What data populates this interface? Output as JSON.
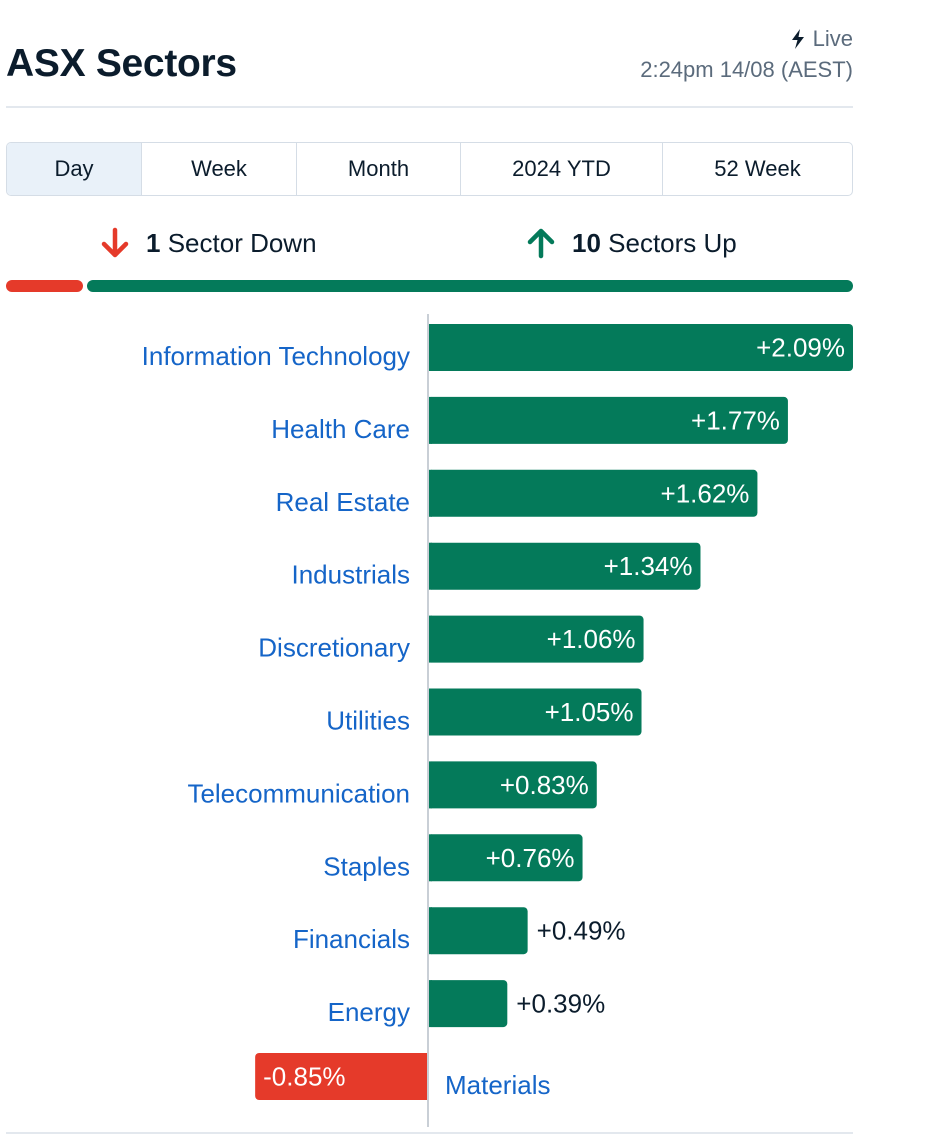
{
  "header": {
    "title": "ASX Sectors",
    "live_label": "Live",
    "timestamp": "2:24pm 14/08 (AEST)",
    "live_icon": "lightning-bolt-icon"
  },
  "tabs": [
    {
      "label": "Day",
      "active": true
    },
    {
      "label": "Week",
      "active": false
    },
    {
      "label": "Month",
      "active": false
    },
    {
      "label": "2024 YTD",
      "active": false
    },
    {
      "label": "52 Week",
      "active": false
    }
  ],
  "summary": {
    "down_count": "1",
    "down_text": "Sector Down",
    "up_count": "10",
    "up_text": "Sectors Up",
    "down_icon": "arrow-down-icon",
    "up_icon": "arrow-up-icon"
  },
  "colors": {
    "up": "#047a5a",
    "down": "#e53a2a",
    "label": "#1565c8",
    "text": "#0b1c2c"
  },
  "chart_data": {
    "type": "bar",
    "orientation": "horizontal",
    "categories": [
      "Information Technology",
      "Health Care",
      "Real Estate",
      "Industrials",
      "Discretionary",
      "Utilities",
      "Telecommunication",
      "Staples",
      "Financials",
      "Energy",
      "Materials"
    ],
    "values": [
      2.09,
      1.77,
      1.62,
      1.34,
      1.06,
      1.05,
      0.83,
      0.76,
      0.49,
      0.39,
      -0.85
    ],
    "value_labels": [
      "+2.09%",
      "+1.77%",
      "+1.62%",
      "+1.34%",
      "+1.06%",
      "+1.05%",
      "+0.83%",
      "+0.76%",
      "+0.49%",
      "+0.39%",
      "-0.85%"
    ],
    "xlim": [
      -0.85,
      2.09
    ],
    "grid": false,
    "legend": "none"
  }
}
